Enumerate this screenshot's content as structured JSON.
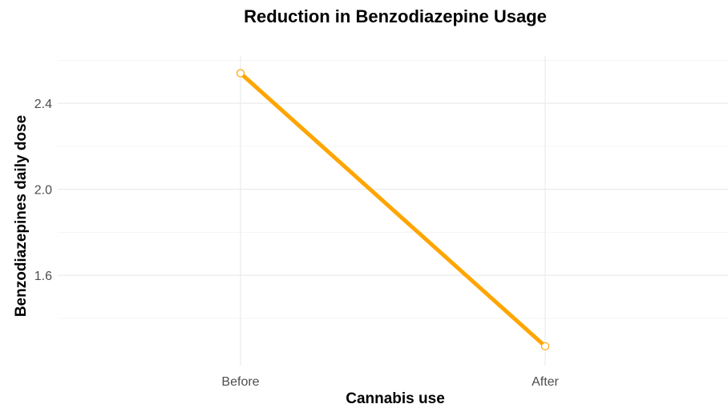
{
  "chart_data": {
    "type": "line",
    "title": "Reduction in Benzodiazepine Usage",
    "xlabel": "Cannabis use",
    "ylabel": "Benzodiazepines daily dose",
    "categories": [
      "Before",
      "After"
    ],
    "series": [
      {
        "values": [
          2.54,
          1.27
        ]
      }
    ],
    "ylim": [
      1.18,
      2.62
    ],
    "yticks": [
      1.6,
      2.0,
      2.4
    ],
    "ytick_labels": [
      "1.6",
      "2.0",
      "2.4"
    ],
    "y_minor_gridlines": [
      1.4,
      1.8,
      2.2,
      2.6
    ],
    "grid": true,
    "legend": "none",
    "line_color": "#FFA500",
    "point_fill": "#ffffff"
  }
}
